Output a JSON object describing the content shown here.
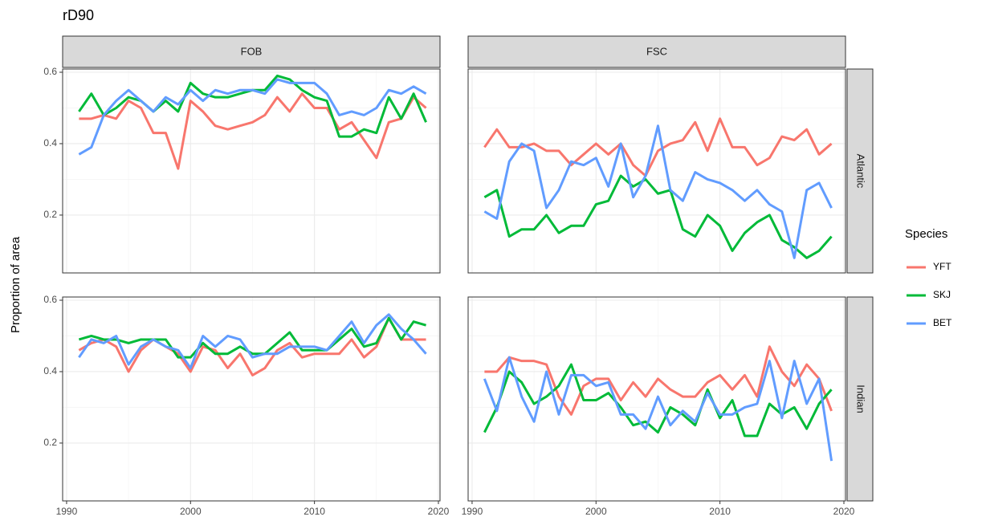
{
  "chart_data": {
    "type": "line",
    "title": "rD90",
    "ylabel": "Proportion of area",
    "legend_title": "Species",
    "facet_cols": [
      "FOB",
      "FSC"
    ],
    "facet_rows": [
      "Atlantic",
      "Indian"
    ],
    "grid": true,
    "x": [
      1991,
      1992,
      1993,
      1994,
      1995,
      1996,
      1997,
      1998,
      1999,
      2000,
      2001,
      2002,
      2003,
      2004,
      2005,
      2006,
      2007,
      2008,
      2009,
      2010,
      2011,
      2012,
      2013,
      2014,
      2015,
      2016,
      2017,
      2018,
      2019
    ],
    "xlim": [
      1989.68,
      2020.13
    ],
    "xticks": [
      1990,
      2000,
      2010,
      2020
    ],
    "ylim": [
      0.038,
      0.609
    ],
    "yticks": [
      0.2,
      0.4,
      0.6
    ],
    "series": [
      {
        "name": "YFT",
        "color": "#F8766D",
        "values": [
          [
            0.47,
            0.47,
            0.48,
            0.47,
            0.52,
            0.5,
            0.43,
            0.43,
            0.33,
            0.52,
            0.49,
            0.45,
            0.44,
            0.45,
            0.46,
            0.48,
            0.53,
            0.49,
            0.54,
            0.5,
            0.5,
            0.44,
            0.46,
            0.41,
            0.36,
            0.46,
            0.47,
            0.53,
            0.5
          ],
          [
            0.39,
            0.44,
            0.39,
            0.39,
            0.4,
            0.38,
            0.38,
            0.34,
            0.37,
            0.4,
            0.37,
            0.4,
            0.34,
            0.31,
            0.38,
            0.4,
            0.41,
            0.46,
            0.38,
            0.47,
            0.39,
            0.39,
            0.34,
            0.36,
            0.42,
            0.41,
            0.44,
            0.37,
            0.4
          ],
          [
            0.46,
            0.48,
            0.49,
            0.47,
            0.4,
            0.46,
            0.49,
            0.47,
            0.45,
            0.4,
            0.47,
            0.46,
            0.41,
            0.45,
            0.39,
            0.41,
            0.46,
            0.48,
            0.44,
            0.45,
            0.45,
            0.45,
            0.49,
            0.44,
            0.47,
            0.55,
            0.49,
            0.49,
            0.49
          ],
          [
            0.4,
            0.4,
            0.44,
            0.43,
            0.43,
            0.42,
            0.33,
            0.28,
            0.36,
            0.38,
            0.38,
            0.32,
            0.37,
            0.33,
            0.38,
            0.35,
            0.33,
            0.33,
            0.37,
            0.39,
            0.35,
            0.39,
            0.33,
            0.47,
            0.4,
            0.36,
            0.42,
            0.38,
            0.29
          ]
        ]
      },
      {
        "name": "SKJ",
        "color": "#00BA38",
        "values": [
          [
            0.49,
            0.54,
            0.48,
            0.5,
            0.53,
            0.52,
            0.49,
            0.52,
            0.49,
            0.57,
            0.54,
            0.53,
            0.53,
            0.54,
            0.55,
            0.55,
            0.59,
            0.58,
            0.55,
            0.53,
            0.52,
            0.42,
            0.42,
            0.44,
            0.43,
            0.53,
            0.47,
            0.54,
            0.46
          ],
          [
            0.25,
            0.27,
            0.14,
            0.16,
            0.16,
            0.2,
            0.15,
            0.17,
            0.17,
            0.23,
            0.24,
            0.31,
            0.28,
            0.3,
            0.26,
            0.27,
            0.16,
            0.14,
            0.2,
            0.17,
            0.1,
            0.15,
            0.18,
            0.2,
            0.13,
            0.11,
            0.08,
            0.1,
            0.14
          ],
          [
            0.49,
            0.5,
            0.49,
            0.49,
            0.48,
            0.49,
            0.49,
            0.49,
            0.44,
            0.44,
            0.48,
            0.45,
            0.45,
            0.47,
            0.45,
            0.45,
            0.48,
            0.51,
            0.46,
            0.46,
            0.46,
            0.49,
            0.52,
            0.47,
            0.48,
            0.55,
            0.49,
            0.54,
            0.53
          ],
          [
            0.23,
            0.3,
            0.4,
            0.37,
            0.31,
            0.33,
            0.36,
            0.42,
            0.32,
            0.32,
            0.34,
            0.3,
            0.25,
            0.26,
            0.23,
            0.3,
            0.28,
            0.25,
            0.35,
            0.27,
            0.32,
            0.22,
            0.22,
            0.31,
            0.28,
            0.3,
            0.24,
            0.31,
            0.35
          ]
        ]
      },
      {
        "name": "BET",
        "color": "#619CFF",
        "values": [
          [
            0.37,
            0.39,
            0.48,
            0.52,
            0.55,
            0.52,
            0.49,
            0.53,
            0.51,
            0.55,
            0.52,
            0.55,
            0.54,
            0.55,
            0.55,
            0.54,
            0.58,
            0.57,
            0.57,
            0.57,
            0.54,
            0.48,
            0.49,
            0.48,
            0.5,
            0.55,
            0.54,
            0.56,
            0.54
          ],
          [
            0.21,
            0.19,
            0.35,
            0.4,
            0.38,
            0.22,
            0.27,
            0.35,
            0.34,
            0.36,
            0.28,
            0.4,
            0.25,
            0.31,
            0.45,
            0.27,
            0.24,
            0.32,
            0.3,
            0.29,
            0.27,
            0.24,
            0.27,
            0.23,
            0.21,
            0.08,
            0.27,
            0.29,
            0.22
          ],
          [
            0.44,
            0.49,
            0.48,
            0.5,
            0.42,
            0.47,
            0.49,
            0.47,
            0.46,
            0.41,
            0.5,
            0.47,
            0.5,
            0.49,
            0.44,
            0.45,
            0.45,
            0.47,
            0.47,
            0.47,
            0.46,
            0.5,
            0.54,
            0.48,
            0.53,
            0.56,
            0.52,
            0.49,
            0.45
          ],
          [
            0.38,
            0.29,
            0.44,
            0.33,
            0.26,
            0.4,
            0.28,
            0.39,
            0.39,
            0.36,
            0.37,
            0.28,
            0.28,
            0.24,
            0.33,
            0.25,
            0.29,
            0.26,
            0.34,
            0.28,
            0.28,
            0.3,
            0.31,
            0.43,
            0.27,
            0.43,
            0.31,
            0.38,
            0.15
          ]
        ]
      }
    ]
  }
}
